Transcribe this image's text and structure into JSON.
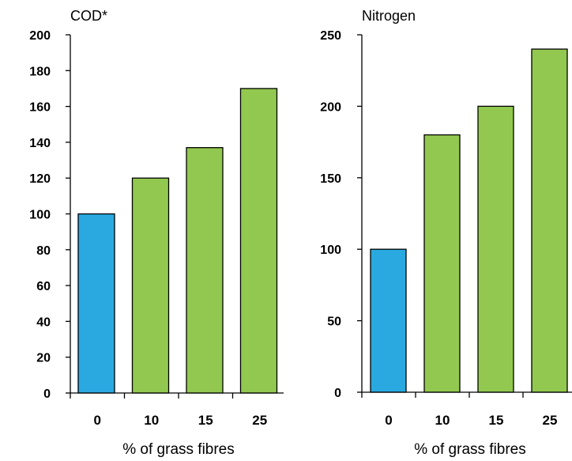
{
  "chart_data": [
    {
      "type": "bar",
      "title": "COD*",
      "xlabel": "% of grass fibres",
      "ylabel": "",
      "categories": [
        "0",
        "10",
        "15",
        "25"
      ],
      "values": [
        100,
        120,
        137,
        170
      ],
      "ylim": [
        0,
        200
      ],
      "yticks": [
        0,
        20,
        40,
        60,
        80,
        100,
        120,
        140,
        160,
        180,
        200
      ],
      "bar_colors": [
        "#29a9e0",
        "#92c84f",
        "#92c84f",
        "#92c84f"
      ],
      "grid": false
    },
    {
      "type": "bar",
      "title": "Nitrogen",
      "xlabel": "% of grass fibres",
      "ylabel": "",
      "categories": [
        "0",
        "10",
        "15",
        "25"
      ],
      "values": [
        100,
        180,
        200,
        240
      ],
      "ylim": [
        0,
        250
      ],
      "yticks": [
        0,
        50,
        100,
        150,
        200,
        250
      ],
      "bar_colors": [
        "#29a9e0",
        "#92c84f",
        "#92c84f",
        "#92c84f"
      ],
      "grid": false
    }
  ]
}
